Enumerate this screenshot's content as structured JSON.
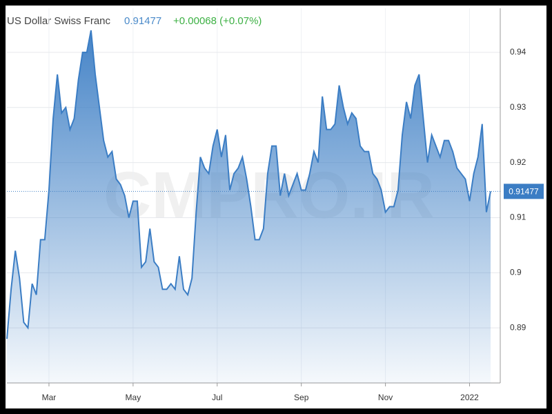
{
  "header": {
    "title": "US Dollar Swiss Franc",
    "price": "0.91477",
    "change": "+0.00068 (+0.07%)"
  },
  "watermark": "CMPRO.IR",
  "chart_data": {
    "type": "area",
    "categories": [
      null,
      null,
      null,
      null,
      null,
      null,
      null,
      null,
      null,
      null,
      "Mar",
      null,
      null,
      null,
      null,
      null,
      null,
      null,
      null,
      null,
      null,
      null,
      null,
      null,
      null,
      null,
      null,
      null,
      null,
      null,
      "May",
      null,
      null,
      null,
      null,
      null,
      null,
      null,
      null,
      null,
      null,
      null,
      null,
      null,
      null,
      null,
      null,
      null,
      null,
      null,
      "Jul",
      null,
      null,
      null,
      null,
      null,
      null,
      null,
      null,
      null,
      null,
      null,
      null,
      null,
      null,
      null,
      null,
      null,
      null,
      null,
      "Sep",
      null,
      null,
      null,
      null,
      null,
      null,
      null,
      null,
      null,
      null,
      null,
      null,
      null,
      null,
      null,
      null,
      null,
      null,
      null,
      "Nov",
      null,
      null,
      null,
      null,
      null,
      null,
      null,
      null,
      null,
      null,
      null,
      null,
      null,
      null,
      null,
      null,
      null,
      null,
      null,
      "2022",
      null,
      null,
      null,
      null,
      null
    ],
    "series": [
      {
        "name": "US Dollar Swiss Franc",
        "color": "#3b7dc4",
        "values": [
          0.888,
          0.897,
          0.904,
          0.899,
          0.891,
          0.89,
          0.898,
          0.896,
          0.906,
          0.906,
          0.915,
          0.928,
          0.936,
          0.929,
          0.93,
          0.926,
          0.928,
          0.935,
          0.94,
          0.94,
          0.944,
          0.936,
          0.93,
          0.924,
          0.921,
          0.922,
          0.917,
          0.916,
          0.914,
          0.91,
          0.913,
          0.913,
          0.901,
          0.902,
          0.908,
          0.902,
          0.901,
          0.897,
          0.897,
          0.898,
          0.897,
          0.903,
          0.897,
          0.896,
          0.899,
          0.911,
          0.921,
          0.919,
          0.918,
          0.923,
          0.926,
          0.921,
          0.925,
          0.915,
          0.918,
          0.919,
          0.921,
          0.917,
          0.912,
          0.906,
          0.906,
          0.908,
          0.918,
          0.923,
          0.923,
          0.914,
          0.918,
          0.914,
          0.916,
          0.918,
          0.915,
          0.915,
          0.918,
          0.922,
          0.92,
          0.932,
          0.926,
          0.926,
          0.927,
          0.934,
          0.93,
          0.927,
          0.929,
          0.928,
          0.923,
          0.922,
          0.922,
          0.918,
          0.917,
          0.915,
          0.911,
          0.912,
          0.912,
          0.915,
          0.925,
          0.931,
          0.928,
          0.934,
          0.936,
          0.928,
          0.92,
          0.925,
          0.923,
          0.921,
          0.924,
          0.924,
          0.922,
          0.919,
          0.918,
          0.917,
          0.913,
          0.918,
          0.921,
          0.927,
          0.911,
          0.91477
        ]
      }
    ],
    "ylim": [
      0.88,
      0.948
    ],
    "yticks": [
      0.89,
      0.9,
      0.91,
      0.92,
      0.93,
      0.94
    ],
    "grid": true
  }
}
